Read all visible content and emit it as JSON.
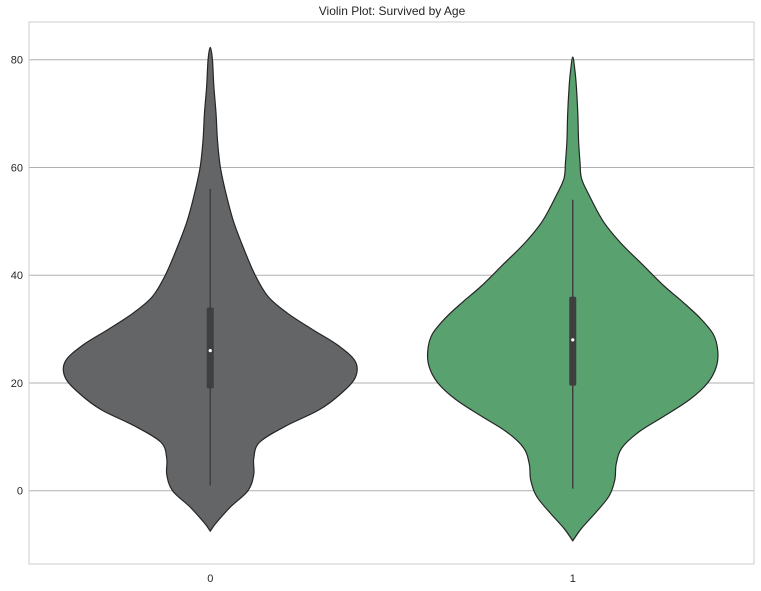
{
  "chart_data": {
    "type": "violin",
    "title": "Violin Plot: Survived by Age",
    "xlabel": "",
    "ylabel": "",
    "categories": [
      "0",
      "1"
    ],
    "y_ticks": [
      0,
      20,
      40,
      60,
      80
    ],
    "ylim": [
      -13.6,
      87.0
    ],
    "grid": true,
    "colors": [
      "#646567",
      "#59a270"
    ],
    "series": [
      {
        "category": "0",
        "range": [
          -7.5,
          82.3
        ],
        "whisker": [
          1.0,
          56.0
        ],
        "box": [
          19.0,
          34.0
        ],
        "median": 26.0,
        "density": [
          [
            -7.5,
            0.0
          ],
          [
            -6.0,
            0.04
          ],
          [
            -3.0,
            0.14
          ],
          [
            0.0,
            0.26
          ],
          [
            3.0,
            0.3
          ],
          [
            6.0,
            0.3
          ],
          [
            9.0,
            0.34
          ],
          [
            12.0,
            0.52
          ],
          [
            15.0,
            0.75
          ],
          [
            18.0,
            0.9
          ],
          [
            21.0,
            1.0
          ],
          [
            24.0,
            1.0
          ],
          [
            27.0,
            0.88
          ],
          [
            30.0,
            0.7
          ],
          [
            33.0,
            0.53
          ],
          [
            36.0,
            0.4
          ],
          [
            40.0,
            0.31
          ],
          [
            45.0,
            0.23
          ],
          [
            50.0,
            0.16
          ],
          [
            55.0,
            0.11
          ],
          [
            60.0,
            0.07
          ],
          [
            65.0,
            0.05
          ],
          [
            70.0,
            0.04
          ],
          [
            75.0,
            0.025
          ],
          [
            80.0,
            0.015
          ],
          [
            82.3,
            0.0
          ]
        ]
      },
      {
        "category": "1",
        "range": [
          -9.3,
          80.5
        ],
        "whisker": [
          0.4,
          54.0
        ],
        "box": [
          19.5,
          36.0
        ],
        "median": 28.0,
        "density": [
          [
            -9.3,
            0.0
          ],
          [
            -7.0,
            0.06
          ],
          [
            -4.0,
            0.16
          ],
          [
            -1.0,
            0.25
          ],
          [
            2.0,
            0.29
          ],
          [
            5.0,
            0.3
          ],
          [
            8.0,
            0.34
          ],
          [
            11.0,
            0.46
          ],
          [
            14.0,
            0.64
          ],
          [
            17.0,
            0.81
          ],
          [
            20.0,
            0.93
          ],
          [
            23.0,
            0.99
          ],
          [
            26.0,
            1.0
          ],
          [
            29.0,
            0.97
          ],
          [
            32.0,
            0.88
          ],
          [
            35.0,
            0.76
          ],
          [
            38.0,
            0.63
          ],
          [
            42.0,
            0.48
          ],
          [
            46.0,
            0.33
          ],
          [
            50.0,
            0.21
          ],
          [
            55.0,
            0.11
          ],
          [
            58.0,
            0.06
          ],
          [
            61.0,
            0.05
          ],
          [
            65.0,
            0.04
          ],
          [
            70.0,
            0.035
          ],
          [
            75.0,
            0.025
          ],
          [
            78.0,
            0.015
          ],
          [
            80.5,
            0.0
          ]
        ]
      }
    ]
  }
}
